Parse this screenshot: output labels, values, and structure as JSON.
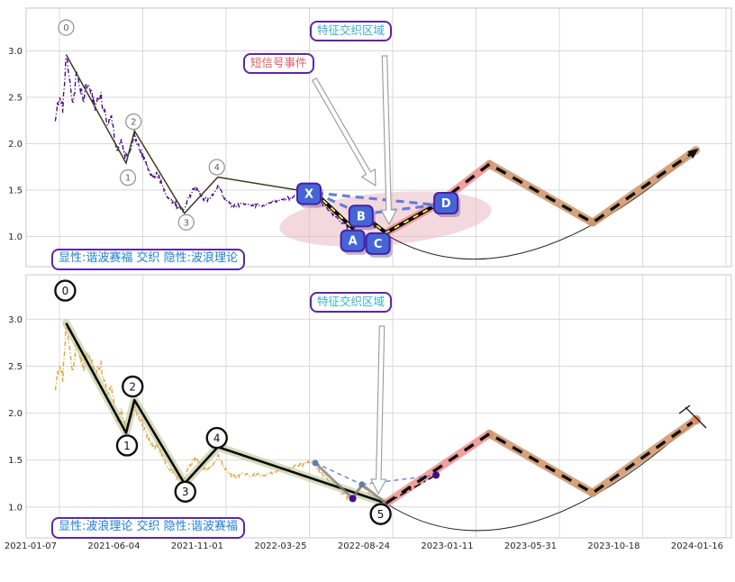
{
  "annotations": {
    "region_top": "特征交织区域",
    "region_bottom": "特征交织区域",
    "event": "短信号事件",
    "caption_top": "显性:谐波赛福 交织 隐性:波浪理论",
    "caption_bottom": "显性:波浪理论 交织 隐性:谐波赛福"
  },
  "style": {
    "grid_color": "#d9d9d9",
    "spine_color": "#c8c8c8",
    "tick_color": "#262626",
    "price_top_color": "#4a0d86",
    "price_bottom_color": "#e4a33b",
    "wave_thin_color": "#3c3c22",
    "wave_bold_color": "#0a0a0a",
    "wave_glow_color": "#bcc793",
    "pattern_black": "#000000",
    "pattern_yellow": "#e8f44e",
    "blue_dash_color": "#5577d9",
    "gray_pattern_color": "#7d7d7d",
    "steel_dot_color": "#5b82a8",
    "purple_dot_color": "#480b8a",
    "projection_dash_color": "#111111",
    "projection_glow_pink": "#f0908e",
    "projection_glow_tan": "#cf9468",
    "ellipse_color": "#eab9c2",
    "box_fill": "#4565d6",
    "box_border": "#4a1fa8",
    "end_dot_color": "#dc8a68",
    "arrow_fill": "#ffffff",
    "arrow_stroke": "#9a9a9a"
  },
  "chart_data": {
    "type": "line",
    "title": "",
    "x_ticks": [
      "2021-01-07",
      "2021-06-04",
      "2021-11-01",
      "2022-03-25",
      "2022-08-24",
      "2023-01-11",
      "2023-05-31",
      "2023-10-18",
      "2024-01-16"
    ],
    "y_ticks": [
      "1.0",
      "1.5",
      "2.0",
      "2.5",
      "3.0"
    ],
    "y_tick_values": [
      1.0,
      1.5,
      2.0,
      2.5,
      3.0
    ],
    "ylim": [
      0.675,
      3.462
    ],
    "xlim": [
      -0.4,
      8.065
    ],
    "grid": true,
    "panels": {
      "top": {
        "price_color": "#4a0d86",
        "caption": "显性:谐波赛福 交织 隐性:波浪理论",
        "explicit": "谐波赛福",
        "implicit": "波浪理论"
      },
      "bottom": {
        "price_color": "#e4a33b",
        "caption": "显性:波浪理论 交织 隐性:谐波赛福",
        "explicit": "波浪理论",
        "implicit": "谐波赛福"
      }
    },
    "price_anchors": [
      [
        -0.05,
        2.28
      ],
      [
        0.0,
        2.52
      ],
      [
        0.04,
        2.38
      ],
      [
        0.08,
        2.96
      ],
      [
        0.13,
        2.62
      ],
      [
        0.17,
        2.42
      ],
      [
        0.2,
        2.78
      ],
      [
        0.24,
        2.6
      ],
      [
        0.28,
        2.5
      ],
      [
        0.33,
        2.64
      ],
      [
        0.38,
        2.55
      ],
      [
        0.43,
        2.4
      ],
      [
        0.48,
        2.52
      ],
      [
        0.53,
        2.36
      ],
      [
        0.58,
        2.22
      ],
      [
        0.62,
        2.3
      ],
      [
        0.66,
        2.06
      ],
      [
        0.7,
        1.92
      ],
      [
        0.74,
        2.02
      ],
      [
        0.78,
        1.88
      ],
      [
        0.82,
        1.86
      ],
      [
        0.86,
        1.98
      ],
      [
        0.9,
        2.1
      ],
      [
        0.94,
        1.98
      ],
      [
        0.98,
        1.92
      ],
      [
        1.03,
        1.81
      ],
      [
        1.08,
        1.7
      ],
      [
        1.13,
        1.63
      ],
      [
        1.18,
        1.66
      ],
      [
        1.23,
        1.57
      ],
      [
        1.28,
        1.44
      ],
      [
        1.33,
        1.4
      ],
      [
        1.4,
        1.34
      ],
      [
        1.46,
        1.3
      ],
      [
        1.5,
        1.28
      ],
      [
        1.55,
        1.42
      ],
      [
        1.6,
        1.5
      ],
      [
        1.64,
        1.53
      ],
      [
        1.68,
        1.47
      ],
      [
        1.73,
        1.41
      ],
      [
        1.78,
        1.39
      ],
      [
        1.83,
        1.43
      ],
      [
        1.88,
        1.5
      ],
      [
        1.91,
        1.55
      ],
      [
        1.95,
        1.46
      ],
      [
        2.0,
        1.4
      ],
      [
        2.06,
        1.34
      ],
      [
        2.12,
        1.32
      ],
      [
        2.2,
        1.36
      ],
      [
        2.28,
        1.33
      ],
      [
        2.36,
        1.35
      ],
      [
        2.44,
        1.33
      ],
      [
        2.52,
        1.36
      ],
      [
        2.6,
        1.38
      ],
      [
        2.68,
        1.4
      ],
      [
        2.76,
        1.41
      ],
      [
        2.84,
        1.44
      ],
      [
        2.92,
        1.46
      ],
      [
        3.0,
        1.48
      ],
      [
        3.07,
        1.44
      ],
      [
        3.14,
        1.37
      ],
      [
        3.22,
        1.3
      ],
      [
        3.3,
        1.23
      ],
      [
        3.38,
        1.16
      ],
      [
        3.46,
        1.11
      ],
      [
        3.52,
        1.09
      ],
      [
        3.58,
        1.17
      ],
      [
        3.63,
        1.23
      ],
      [
        3.68,
        1.18
      ],
      [
        3.74,
        1.13
      ],
      [
        3.8,
        1.1
      ],
      [
        3.86,
        1.07
      ],
      [
        3.93,
        1.05
      ],
      [
        4.0,
        1.09
      ]
    ],
    "elliott_waves": [
      {
        "label": "0",
        "x": 0.08,
        "y": 2.96
      },
      {
        "label": "1",
        "x": 0.8,
        "y": 1.79
      },
      {
        "label": "2",
        "x": 0.9,
        "y": 2.14
      },
      {
        "label": "3",
        "x": 1.5,
        "y": 1.25
      },
      {
        "label": "4",
        "x": 1.9,
        "y": 1.64
      },
      {
        "label": "5",
        "x": 3.92,
        "y": 1.04
      }
    ],
    "harmonic_points": [
      {
        "label": "X",
        "x": 3.07,
        "y": 1.47
      },
      {
        "label": "A",
        "x": 3.52,
        "y": 1.09
      },
      {
        "label": "B",
        "x": 3.63,
        "y": 1.24
      },
      {
        "label": "C",
        "x": 3.92,
        "y": 1.04
      },
      {
        "label": "D",
        "x": 4.52,
        "y": 1.34
      }
    ],
    "harmonic_triangle": [
      [
        "X",
        "B"
      ],
      [
        "B",
        "D"
      ],
      [
        "X",
        "D"
      ]
    ],
    "projection_top": [
      [
        3.92,
        1.04
      ],
      [
        4.52,
        1.34
      ],
      [
        5.16,
        1.78
      ],
      [
        6.4,
        1.15
      ],
      [
        7.64,
        1.93
      ]
    ],
    "projection_bottom": [
      [
        3.92,
        1.04
      ],
      [
        5.16,
        1.78
      ],
      [
        6.4,
        1.15
      ],
      [
        7.64,
        1.93
      ]
    ]
  }
}
